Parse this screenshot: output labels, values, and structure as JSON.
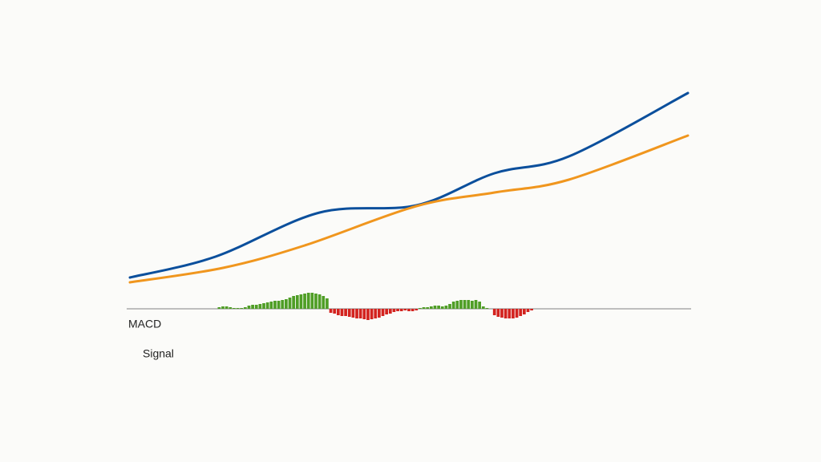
{
  "chart_data": {
    "type": "line",
    "xlim": [
      0,
      150
    ],
    "ylim": [
      -5,
      30
    ],
    "series": [
      {
        "name": "MACD",
        "color": "#0b4f9c",
        "x": [
          0,
          23,
          51,
          77,
          98,
          118,
          150
        ],
        "values": [
          3.9,
          6.5,
          12.0,
          12.9,
          16.9,
          19.0,
          26.9
        ]
      },
      {
        "name": "Signal",
        "color": "#f0961e",
        "x": [
          0,
          25,
          47,
          77,
          98,
          118,
          150
        ],
        "values": [
          3.3,
          5.1,
          7.9,
          12.8,
          14.5,
          16.1,
          21.6
        ]
      }
    ],
    "histogram": {
      "positive_color": "#4f9e26",
      "negative_color": "#d3231f",
      "x": [
        24,
        25,
        26,
        27,
        28,
        29,
        30,
        31,
        32,
        33,
        34,
        35,
        36,
        37,
        38,
        39,
        40,
        41,
        42,
        43,
        44,
        45,
        46,
        47,
        48,
        49,
        50,
        51,
        52,
        53,
        54,
        55,
        56,
        57,
        58,
        59,
        60,
        61,
        62,
        63,
        64,
        65,
        66,
        67,
        68,
        69,
        70,
        71,
        72,
        73,
        74,
        75,
        76,
        77,
        78,
        79,
        80,
        81,
        82,
        83,
        84,
        85,
        86,
        87,
        88,
        89,
        90,
        91,
        92,
        93,
        94,
        95,
        96,
        97,
        98,
        99,
        100,
        101,
        102,
        103,
        104,
        105,
        106,
        107,
        108
      ],
      "values": [
        0.2,
        0.3,
        0.3,
        0.2,
        0.1,
        0.1,
        0.1,
        0.2,
        0.4,
        0.5,
        0.5,
        0.6,
        0.7,
        0.8,
        0.9,
        1.0,
        1.0,
        1.1,
        1.2,
        1.4,
        1.6,
        1.7,
        1.8,
        1.9,
        2.0,
        2.0,
        1.9,
        1.8,
        1.6,
        1.3,
        -0.5,
        -0.6,
        -0.8,
        -0.9,
        -0.9,
        -1.0,
        -1.1,
        -1.2,
        -1.2,
        -1.3,
        -1.4,
        -1.3,
        -1.2,
        -1.1,
        -0.9,
        -0.7,
        -0.6,
        -0.4,
        -0.3,
        -0.3,
        -0.2,
        -0.3,
        -0.3,
        -0.2,
        0.1,
        0.2,
        0.2,
        0.3,
        0.4,
        0.4,
        0.3,
        0.4,
        0.6,
        0.9,
        1.0,
        1.1,
        1.1,
        1.1,
        1.0,
        1.1,
        0.9,
        0.3,
        0.1,
        0.0,
        -0.8,
        -1.0,
        -1.1,
        -1.2,
        -1.2,
        -1.2,
        -1.1,
        -0.9,
        -0.7,
        -0.4,
        -0.2
      ]
    }
  }
}
